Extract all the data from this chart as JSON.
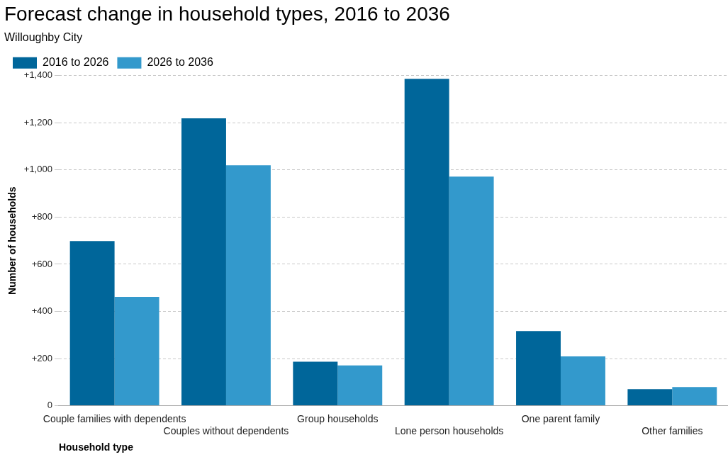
{
  "chart_data": {
    "type": "bar",
    "title": "Forecast change in household types, 2016 to 2036",
    "subtitle": "Willoughby City",
    "xlabel": "Household type",
    "ylabel": "Number of households",
    "categories": [
      "Couple families with dependents",
      "Couples without dependents",
      "Group households",
      "Lone person households",
      "One parent family",
      "Other families"
    ],
    "series": [
      {
        "name": "2016 to 2026",
        "color": "#00669a",
        "values": [
          698,
          1219,
          187,
          1387,
          317,
          70
        ]
      },
      {
        "name": "2026 to 2036",
        "color": "#3399cc",
        "values": [
          462,
          1020,
          171,
          972,
          209,
          79
        ]
      }
    ],
    "ylim": [
      0,
      1400
    ],
    "yticks": [
      0,
      {
        "value": 200,
        "label": "+200"
      },
      {
        "value": 400,
        "label": "+400"
      },
      {
        "value": 600,
        "label": "+600"
      },
      {
        "value": 800,
        "label": "+800"
      },
      {
        "value": 1000,
        "label": "+1,000"
      },
      {
        "value": 1200,
        "label": "+1,200"
      },
      {
        "value": 1400,
        "label": "+1,400"
      }
    ],
    "grid": "y",
    "legend": "top left"
  }
}
